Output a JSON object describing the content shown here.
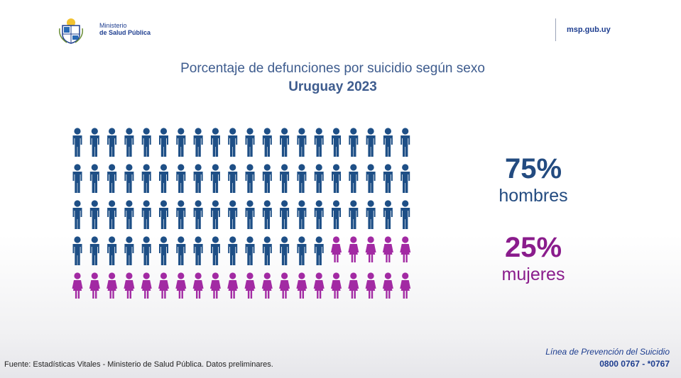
{
  "header": {
    "ministry_line1": "Ministerio",
    "ministry_line2": "de Salud Pública",
    "website": "msp.gub.uy"
  },
  "title": {
    "line1": "Porcentaje de defunciones por suicidio según sexo",
    "line2": "Uruguay 2023"
  },
  "chart_data": {
    "type": "pictograph",
    "total_icons": 100,
    "rows": 5,
    "columns": 20,
    "series": [
      {
        "name": "hombres",
        "percent": 75,
        "label": "75%",
        "color": "#1e4f86"
      },
      {
        "name": "mujeres",
        "percent": 25,
        "label": "25%",
        "color": "#a22aa3"
      }
    ]
  },
  "labels": {
    "hombres_pct": "75%",
    "hombres": "hombres",
    "mujeres_pct": "25%",
    "mujeres": "mujeres"
  },
  "footer": {
    "source": "Fuente: Estadísticas Vitales - Ministerio de Salud Pública. Datos preliminares.",
    "hotline_title": "Línea de Prevención del Suicidio",
    "hotline_numbers": "0800 0767 - *0767"
  }
}
